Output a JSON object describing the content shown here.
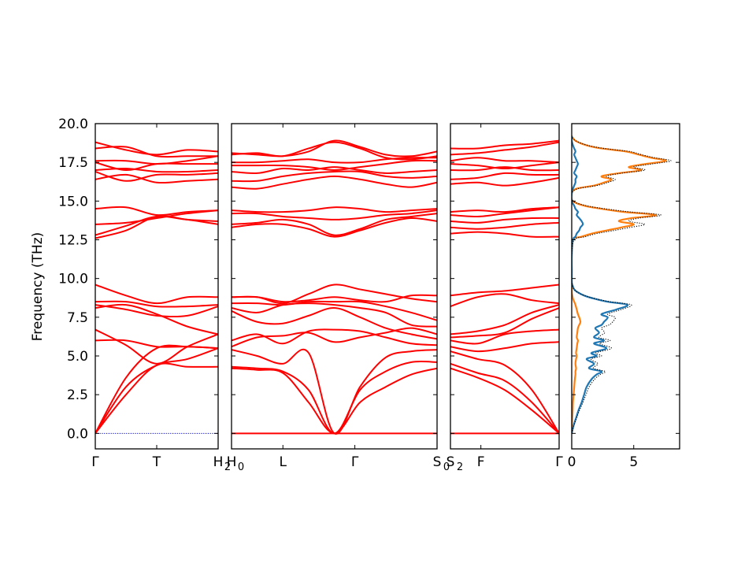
{
  "chart_data": {
    "type": "line",
    "ylabel": "Frequency (THz)",
    "ylim": [
      -1.0,
      20.0
    ],
    "yticks": [
      "0.0",
      "2.5",
      "5.0",
      "7.5",
      "10.0",
      "12.5",
      "15.0",
      "17.5",
      "20.0"
    ],
    "ytick_values": [
      0.0,
      2.5,
      5.0,
      7.5,
      10.0,
      12.5,
      15.0,
      17.5,
      20.0
    ],
    "band_color": "#ff0000",
    "zero_line_color": "#0000cc",
    "segments": [
      {
        "ticks": [
          {
            "pos": 0.0,
            "label": "Γ"
          },
          {
            "pos": 0.5,
            "label": "T"
          },
          {
            "pos": 1.0,
            "label": "H",
            "sub": "2"
          }
        ],
        "bands": [
          [
            0.0,
            2.5,
            4.4,
            4.3,
            4.3
          ],
          [
            0.0,
            3.0,
            4.4,
            4.8,
            5.5
          ],
          [
            0.0,
            3.6,
            5.5,
            5.6,
            5.5
          ],
          [
            6.0,
            6.0,
            5.6,
            5.6,
            5.5
          ],
          [
            6.7,
            5.7,
            4.5,
            5.6,
            6.4
          ],
          [
            8.1,
            8.3,
            7.7,
            6.9,
            6.4
          ],
          [
            8.5,
            8.5,
            8.2,
            8.2,
            8.3
          ],
          [
            8.3,
            8.0,
            7.6,
            7.6,
            8.2
          ],
          [
            9.6,
            8.9,
            8.4,
            8.8,
            8.8
          ],
          [
            12.6,
            13.1,
            14.0,
            13.8,
            13.5
          ],
          [
            12.8,
            13.4,
            14.0,
            13.8,
            13.7
          ],
          [
            13.5,
            13.6,
            13.9,
            14.2,
            14.4
          ],
          [
            14.5,
            14.6,
            14.1,
            14.3,
            14.4
          ],
          [
            16.4,
            16.7,
            16.2,
            16.3,
            16.4
          ],
          [
            16.9,
            16.3,
            16.7,
            16.7,
            16.8
          ],
          [
            17.0,
            17.1,
            16.9,
            16.9,
            17.0
          ],
          [
            17.5,
            17.0,
            17.4,
            17.4,
            17.4
          ],
          [
            17.6,
            17.6,
            17.4,
            17.6,
            17.9
          ],
          [
            18.4,
            18.5,
            17.9,
            17.9,
            17.9
          ],
          [
            18.8,
            18.3,
            18.0,
            18.3,
            18.2
          ]
        ]
      },
      {
        "ticks": [
          {
            "pos": 0.0,
            "label": "H",
            "sub": "0"
          },
          {
            "pos": 0.25,
            "label": "L"
          },
          {
            "pos": 0.6,
            "label": "Γ"
          },
          {
            "pos": 1.0,
            "label": "S",
            "sub": "0"
          }
        ],
        "bands": [
          [
            0.0,
            0.0,
            0.0,
            0.0,
            0.0,
            0.0,
            0.0,
            0.0,
            0.0
          ],
          [
            4.2,
            4.1,
            3.9,
            2.0,
            0.0,
            2.0,
            3.0,
            3.8,
            4.2
          ],
          [
            4.3,
            4.2,
            4.0,
            2.8,
            0.0,
            2.8,
            4.0,
            4.6,
            4.6
          ],
          [
            5.4,
            5.0,
            4.5,
            5.2,
            0.0,
            3.0,
            4.9,
            5.3,
            5.4
          ],
          [
            5.6,
            6.2,
            6.3,
            6.5,
            5.9,
            6.2,
            6.5,
            6.8,
            6.4
          ],
          [
            6.0,
            6.4,
            5.8,
            6.6,
            6.7,
            6.6,
            6.2,
            5.8,
            5.7
          ],
          [
            7.9,
            7.2,
            7.1,
            7.6,
            8.1,
            7.5,
            6.8,
            6.4,
            6.1
          ],
          [
            8.1,
            7.8,
            8.3,
            8.4,
            8.3,
            8.1,
            7.8,
            7.0,
            6.9
          ],
          [
            8.4,
            8.4,
            8.3,
            8.5,
            8.5,
            8.5,
            8.2,
            7.8,
            7.3
          ],
          [
            8.8,
            8.8,
            8.4,
            9.0,
            9.6,
            9.3,
            9.0,
            8.7,
            8.5
          ],
          [
            8.8,
            8.8,
            8.5,
            8.6,
            8.8,
            8.6,
            8.5,
            8.9,
            8.9
          ],
          [
            13.3,
            13.5,
            13.5,
            13.2,
            12.7,
            13.1,
            13.6,
            13.9,
            13.7
          ],
          [
            13.5,
            13.6,
            13.8,
            13.5,
            12.8,
            13.2,
            13.8,
            14.0,
            14.2
          ],
          [
            14.2,
            14.2,
            14.0,
            13.9,
            13.8,
            13.9,
            14.1,
            14.2,
            14.4
          ],
          [
            14.4,
            14.3,
            14.3,
            14.4,
            14.6,
            14.5,
            14.3,
            14.4,
            14.5
          ],
          [
            15.9,
            15.8,
            16.1,
            16.4,
            16.6,
            16.4,
            16.1,
            15.9,
            16.2
          ],
          [
            16.3,
            16.3,
            16.6,
            16.8,
            16.9,
            16.9,
            16.6,
            16.5,
            16.6
          ],
          [
            16.9,
            16.8,
            17.1,
            17.0,
            17.2,
            17.0,
            16.8,
            16.9,
            17.0
          ],
          [
            17.3,
            17.3,
            17.3,
            17.2,
            17.0,
            17.2,
            17.4,
            17.6,
            17.6
          ],
          [
            17.5,
            17.5,
            17.6,
            17.7,
            17.5,
            17.5,
            17.7,
            17.8,
            17.8
          ],
          [
            18.0,
            18.1,
            17.9,
            18.4,
            18.8,
            18.4,
            17.8,
            17.7,
            17.9
          ],
          [
            18.1,
            18.0,
            17.9,
            18.2,
            18.9,
            18.5,
            18.0,
            17.9,
            18.2
          ]
        ]
      },
      {
        "ticks": [
          {
            "pos": 0.0,
            "label": "S",
            "sub": "2"
          },
          {
            "pos": 0.28,
            "label": "F"
          },
          {
            "pos": 1.0,
            "label": "Γ"
          }
        ],
        "bands": [
          [
            0.0,
            0.0,
            0.0,
            0.0,
            0.0
          ],
          [
            4.2,
            3.6,
            2.8,
            1.5,
            0.0
          ],
          [
            4.5,
            3.9,
            3.4,
            2.0,
            0.0
          ],
          [
            5.3,
            4.8,
            4.4,
            2.8,
            0.0
          ],
          [
            5.6,
            5.3,
            5.5,
            5.8,
            5.9
          ],
          [
            6.0,
            5.8,
            6.4,
            6.6,
            6.7
          ],
          [
            6.2,
            6.3,
            6.5,
            7.4,
            8.1
          ],
          [
            6.4,
            6.6,
            7.0,
            7.8,
            8.3
          ],
          [
            8.2,
            8.8,
            9.0,
            8.6,
            8.4
          ],
          [
            8.9,
            9.1,
            9.2,
            9.4,
            9.6
          ],
          [
            12.9,
            13.0,
            12.9,
            12.7,
            12.7
          ],
          [
            13.3,
            13.2,
            13.3,
            13.5,
            13.6
          ],
          [
            13.7,
            13.6,
            13.8,
            13.9,
            13.9
          ],
          [
            14.1,
            14.0,
            14.2,
            14.4,
            14.6
          ],
          [
            14.3,
            14.4,
            14.3,
            14.5,
            14.6
          ],
          [
            16.1,
            16.2,
            16.0,
            16.2,
            16.5
          ],
          [
            16.4,
            16.5,
            16.8,
            16.7,
            16.7
          ],
          [
            17.0,
            17.0,
            17.2,
            17.0,
            17.0
          ],
          [
            17.4,
            17.3,
            17.1,
            17.3,
            17.5
          ],
          [
            17.6,
            17.8,
            17.6,
            17.6,
            17.5
          ],
          [
            18.0,
            18.1,
            18.3,
            18.5,
            18.8
          ],
          [
            18.4,
            18.4,
            18.6,
            18.7,
            18.9
          ]
        ]
      }
    ],
    "dos": {
      "xlim": [
        0,
        8.7
      ],
      "xticks": [
        "0",
        "5"
      ],
      "xtick_values": [
        0,
        5
      ],
      "colors": {
        "series_a": "#1f77b4",
        "series_b": "#ff7f0e",
        "total": "#000000"
      },
      "f": [
        0.0,
        0.5,
        1.0,
        1.5,
        2.0,
        2.5,
        3.0,
        3.5,
        3.8,
        4.0,
        4.2,
        4.5,
        4.8,
        5.0,
        5.2,
        5.5,
        5.8,
        6.0,
        6.2,
        6.5,
        6.8,
        7.0,
        7.2,
        7.5,
        7.7,
        8.0,
        8.3,
        8.5,
        8.7,
        8.9,
        9.1,
        9.3,
        9.6,
        9.8,
        10.5,
        11.5,
        12.5,
        12.7,
        12.9,
        13.1,
        13.3,
        13.5,
        13.7,
        13.9,
        14.1,
        14.3,
        14.5,
        14.7,
        15.0,
        15.5,
        15.8,
        16.0,
        16.2,
        16.4,
        16.6,
        16.8,
        17.0,
        17.2,
        17.4,
        17.6,
        17.8,
        18.0,
        18.2,
        18.4,
        18.6,
        18.9,
        19.2
      ],
      "series_a": [
        0.0,
        0.15,
        0.35,
        0.55,
        0.8,
        1.0,
        1.2,
        1.6,
        2.0,
        2.4,
        1.4,
        1.8,
        1.2,
        2.0,
        1.6,
        2.8,
        1.8,
        2.6,
        1.8,
        2.2,
        1.9,
        2.4,
        2.6,
        2.9,
        2.4,
        3.6,
        4.5,
        2.9,
        1.8,
        1.0,
        0.5,
        0.2,
        0.05,
        0.0,
        0.0,
        0.0,
        0.1,
        0.3,
        0.4,
        0.6,
        0.7,
        0.9,
        0.8,
        0.6,
        0.4,
        0.5,
        0.3,
        0.2,
        0.0,
        0.0,
        0.1,
        0.2,
        0.3,
        0.3,
        0.4,
        0.2,
        0.3,
        0.4,
        0.5,
        0.4,
        0.3,
        0.2,
        0.3,
        0.2,
        0.1,
        0.0,
        0.0
      ],
      "series_b": [
        0.0,
        0.02,
        0.05,
        0.08,
        0.1,
        0.15,
        0.2,
        0.25,
        0.3,
        0.3,
        0.35,
        0.3,
        0.35,
        0.4,
        0.35,
        0.4,
        0.45,
        0.5,
        0.4,
        0.45,
        0.5,
        0.6,
        0.7,
        0.6,
        0.5,
        0.4,
        0.3,
        0.2,
        0.1,
        0.05,
        0.0,
        0.0,
        0.0,
        0.0,
        0.0,
        0.0,
        0.1,
        0.8,
        1.6,
        2.8,
        4.0,
        5.0,
        3.8,
        4.8,
        6.8,
        4.2,
        2.4,
        1.0,
        0.1,
        0.0,
        0.4,
        1.8,
        2.6,
        3.2,
        2.4,
        3.8,
        5.6,
        4.6,
        6.0,
        7.6,
        6.4,
        5.4,
        4.4,
        2.4,
        1.2,
        0.3,
        0.0
      ]
    }
  }
}
